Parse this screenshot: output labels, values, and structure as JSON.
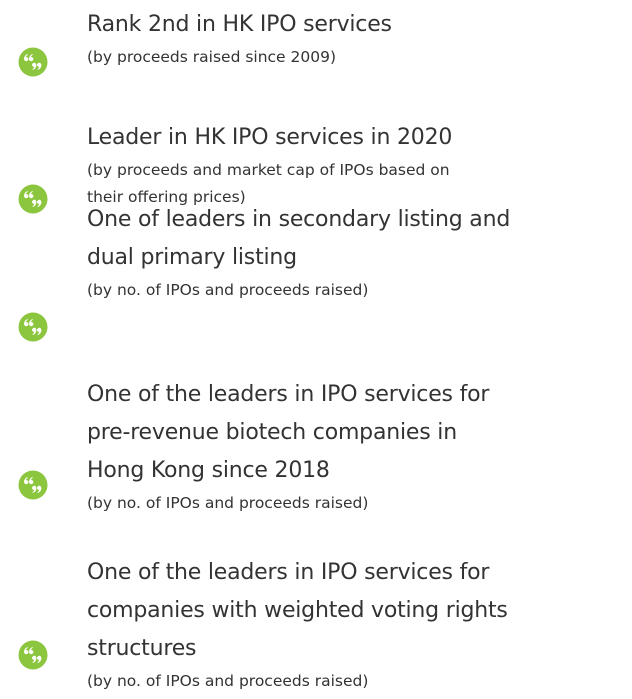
{
  "items": [
    {
      "title_lines": [
        "Rank 2nd in HK IPO services"
      ],
      "subtitle_lines": [
        "(by proceeds raised since 2009)"
      ]
    },
    {
      "title_lines": [
        "Leader in HK IPO services in 2020"
      ],
      "subtitle_lines": [
        "(by proceeds and market cap of IPOs based on",
        "their offering prices)"
      ]
    },
    {
      "title_lines": [
        "One of leaders in secondary listing and",
        "dual primary listing"
      ],
      "subtitle_lines": [
        "(by no. of IPOs and proceeds raised)"
      ]
    },
    {
      "title_lines": [
        "One of the leaders in IPO services for",
        "pre-revenue biotech companies in",
        "Hong Kong since 2018"
      ],
      "subtitle_lines": [
        "(by no. of IPOs and proceeds raised)"
      ]
    },
    {
      "title_lines": [
        "One of the leaders in IPO services for",
        "companies with weighted voting rights",
        "structures"
      ],
      "subtitle_lines": [
        "(by no. of IPOs and proceeds raised)"
      ]
    }
  ]
}
